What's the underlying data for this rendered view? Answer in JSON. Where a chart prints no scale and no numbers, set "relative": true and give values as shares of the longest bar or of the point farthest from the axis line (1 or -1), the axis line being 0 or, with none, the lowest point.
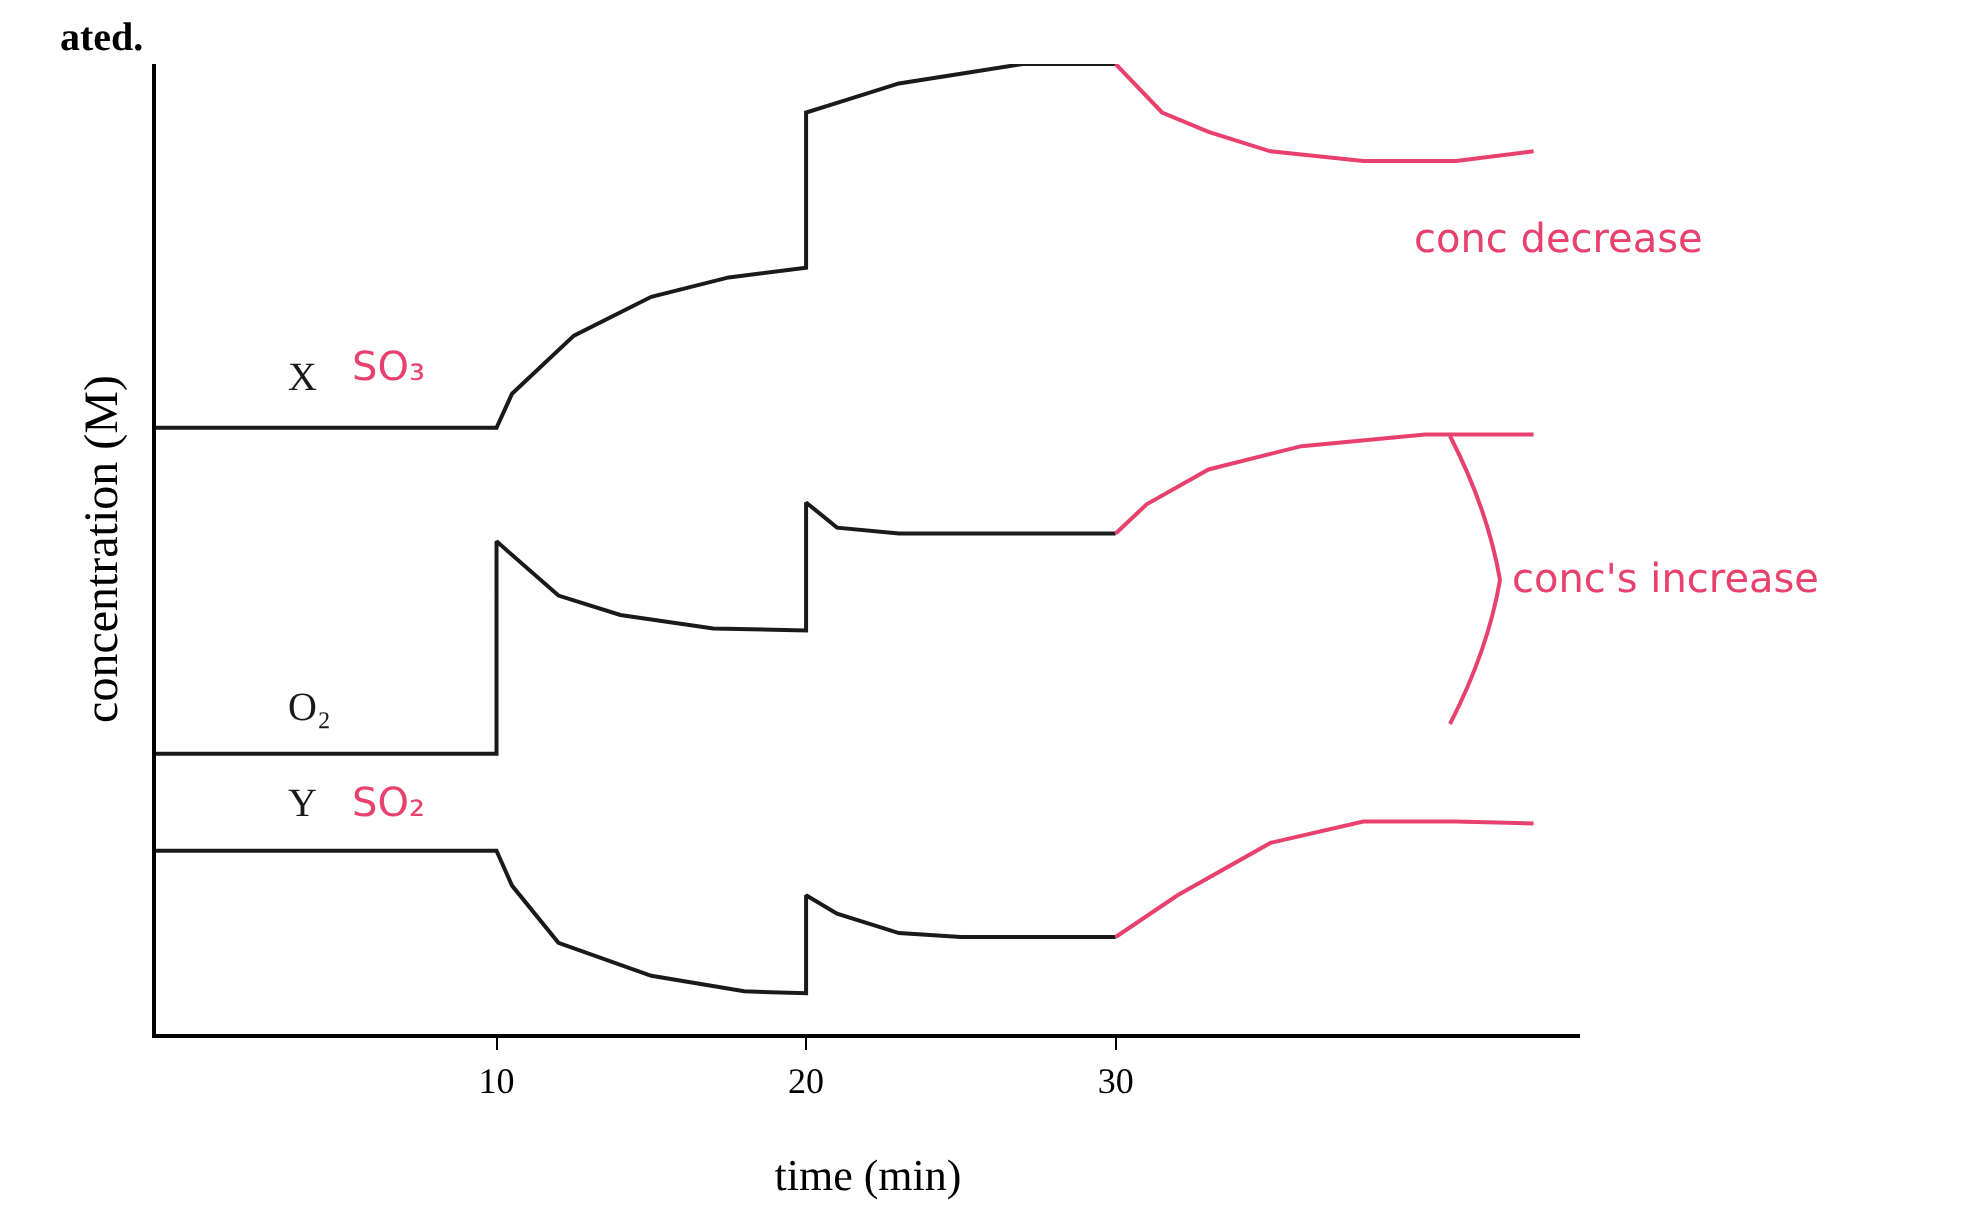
{
  "chart_data": {
    "type": "line",
    "relative": true,
    "xlabel": "time (min)",
    "ylabel": "concentration (M)",
    "xlim": [
      -1,
      45
    ],
    "xticks": [
      10,
      20,
      30
    ],
    "grid": false,
    "legend": false,
    "marker": "none",
    "line_style": "solid",
    "series": [
      {
        "name": "X",
        "color": "#1a1a1a",
        "x": [
          -1,
          10,
          10.5,
          12.5,
          15,
          17.5,
          20,
          20,
          21,
          23,
          25,
          27,
          30
        ],
        "values": [
          0.625,
          0.625,
          0.66,
          0.72,
          0.76,
          0.78,
          0.79,
          0.95,
          0.96,
          0.98,
          0.99,
          1,
          1
        ]
      },
      {
        "name": "O₂",
        "color": "#1a1a1a",
        "x": [
          -1,
          10,
          10,
          12,
          14,
          17,
          20,
          20,
          21,
          23,
          30
        ],
        "values": [
          0.289,
          0.289,
          0.508,
          0.452,
          0.432,
          0.418,
          0.416,
          0.548,
          0.522,
          0.516,
          0.516
        ]
      },
      {
        "name": "Y",
        "color": "#1a1a1a",
        "x": [
          -1,
          10,
          10.5,
          12,
          15,
          18,
          20,
          20,
          21,
          23,
          25,
          30
        ],
        "values": [
          0.189,
          0.189,
          0.153,
          0.094,
          0.06,
          0.044,
          0.042,
          0.143,
          0.124,
          0.104,
          0.1,
          0.1
        ]
      },
      {
        "color": "#e8416e",
        "x": [
          30,
          31.5,
          33,
          35,
          38,
          41,
          43.5
        ],
        "values": [
          1,
          0.95,
          0.93,
          0.91,
          0.9,
          0.9,
          0.91
        ]
      },
      {
        "color": "#e8416e",
        "x": [
          30,
          31,
          33,
          36,
          40,
          43.5
        ],
        "values": [
          0.516,
          0.546,
          0.582,
          0.606,
          0.618,
          0.618
        ]
      },
      {
        "color": "#e8416e",
        "x": [
          30,
          32,
          35,
          38,
          41,
          43.5
        ],
        "values": [
          0.1,
          0.143,
          0.197,
          0.219,
          0.219,
          0.217
        ]
      }
    ],
    "annotations": [
      "ated.",
      "SO₃",
      "SO₂",
      "conc decrease",
      "conc's increase"
    ]
  }
}
